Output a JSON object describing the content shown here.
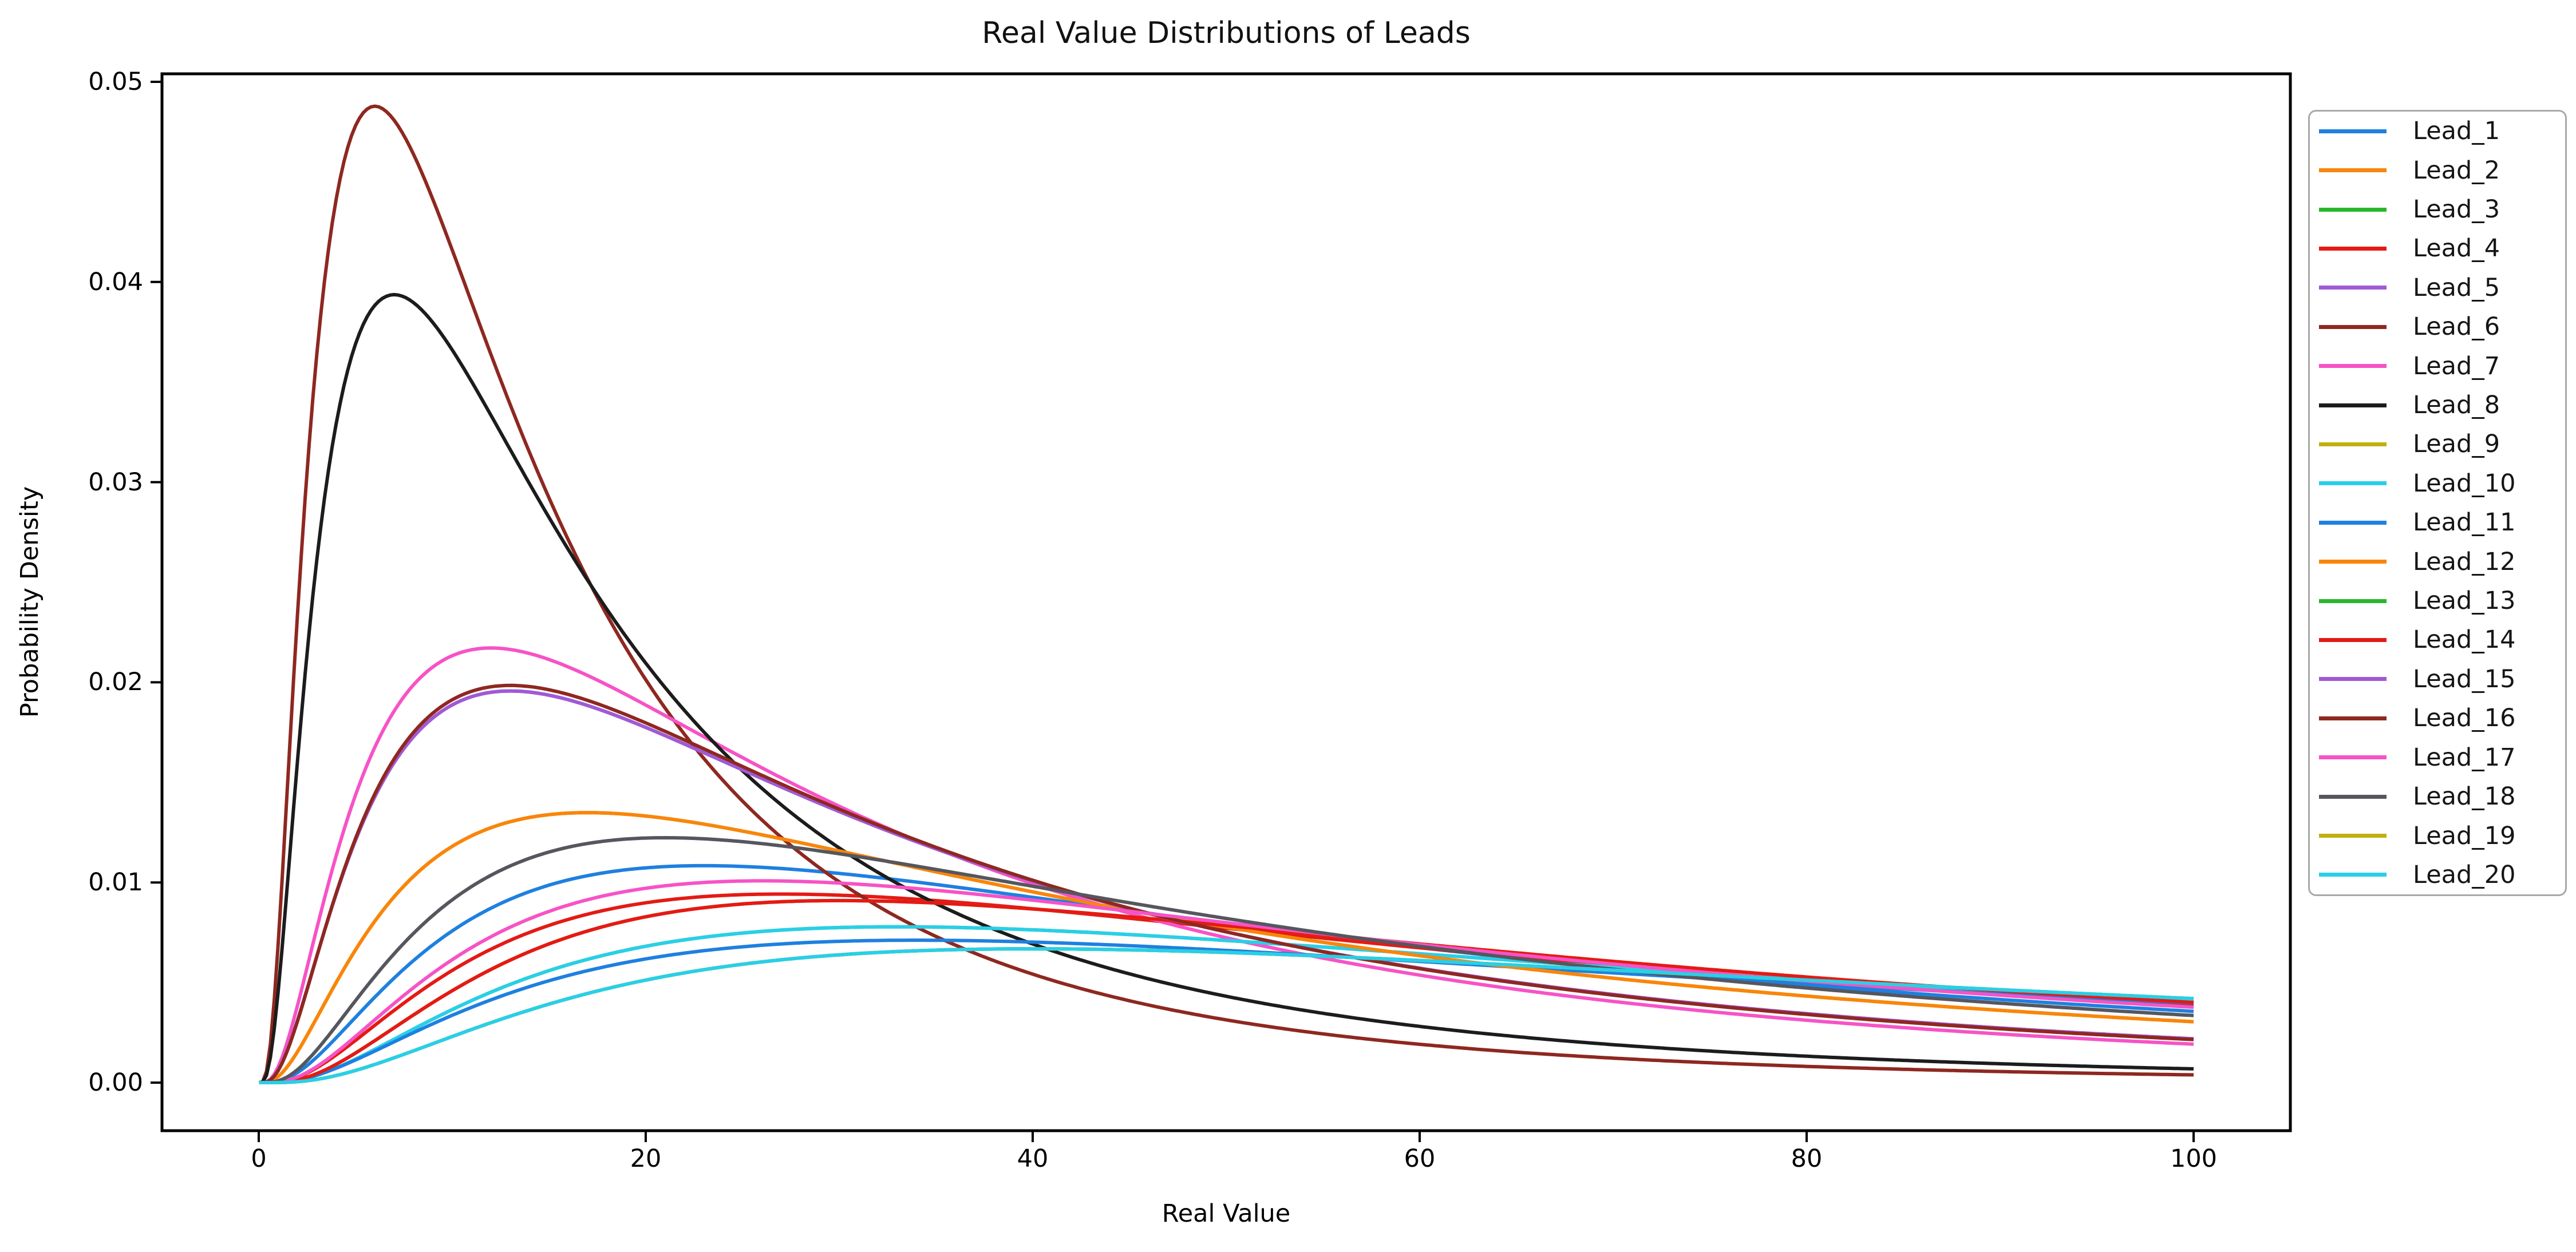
{
  "chart_data": {
    "type": "line",
    "title": "Real Value Distributions of Leads",
    "xlabel": "Real Value",
    "ylabel": "Probability Density",
    "xlim": [
      -5,
      105
    ],
    "ylim": [
      -0.0024,
      0.0504
    ],
    "x_ticks": [
      0,
      20,
      40,
      60,
      80,
      100
    ],
    "x_tick_labels": [
      "0",
      "20",
      "40",
      "60",
      "80",
      "100"
    ],
    "y_ticks": [
      0.0,
      0.01,
      0.02,
      0.03,
      0.04,
      0.05
    ],
    "y_tick_labels": [
      "0.00",
      "0.01",
      "0.02",
      "0.03",
      "0.04",
      "0.05"
    ],
    "grid": false,
    "legend_position": "outside-right",
    "curve_model": "lognormal_pdf",
    "series": [
      {
        "label": "Lead_1",
        "color": "#1e80e0",
        "mu": 4.1058,
        "sigma": 0.985,
        "peak_x": 23,
        "peak_y": 0.0108,
        "value_at_100": 0.00356
      },
      {
        "label": "Lead_2",
        "color": "#f8860b",
        "mu": 3.8877,
        "sigma": 1.027,
        "peak_x": 17,
        "peak_y": 0.0135,
        "value_at_100": 0.00304
      },
      {
        "label": "Lead_3",
        "color": "#2ab62a",
        "mu": 4.4374,
        "sigma": 0.97,
        "peak_x": 33,
        "peak_y": 0.0078,
        "value_at_100": 0.00405
      },
      {
        "label": "Lead_4",
        "color": "#e41a15",
        "mu": 4.2465,
        "sigma": 0.975,
        "peak_x": 27,
        "peak_y": 0.0094,
        "value_at_100": 0.00382
      },
      {
        "label": "Lead_5",
        "color": "#a05ad5",
        "mu": 3.5156,
        "sigma": 0.975,
        "peak_x": 13,
        "peak_y": 0.0196,
        "value_at_100": 0.00219
      },
      {
        "label": "Lead_6",
        "color": "#8e2820",
        "mu": 2.6108,
        "sigma": 0.905,
        "peak_x": 6,
        "peak_y": 0.0488,
        "value_at_100": 0.00039
      },
      {
        "label": "Lead_7",
        "color": "#f653c6",
        "mu": 3.4122,
        "sigma": 0.963,
        "peak_x": 12,
        "peak_y": 0.0217,
        "value_at_100": 0.00192
      },
      {
        "label": "Lead_8",
        "color": "#1c1c1c",
        "mu": 2.8202,
        "sigma": 0.935,
        "peak_x": 7,
        "peak_y": 0.0394,
        "value_at_100": 0.00069
      },
      {
        "label": "Lead_9",
        "color": "#c0b112",
        "mu": 4.2848,
        "sigma": 0.94,
        "peak_x": 30,
        "peak_y": 0.0091,
        "value_at_100": 0.004
      },
      {
        "label": "Lead_10",
        "color": "#29cfe8",
        "mu": 4.4374,
        "sigma": 0.97,
        "peak_x": 33,
        "peak_y": 0.0078,
        "value_at_100": 0.00405
      },
      {
        "label": "Lead_11",
        "color": "#1e80e0",
        "mu": 4.5265,
        "sigma": 1.0,
        "peak_x": 34,
        "peak_y": 0.0071,
        "value_at_100": 0.00398
      },
      {
        "label": "Lead_12",
        "color": "#f8860b",
        "mu": 3.8877,
        "sigma": 1.027,
        "peak_x": 17,
        "peak_y": 0.0135,
        "value_at_100": 0.00304
      },
      {
        "label": "Lead_13",
        "color": "#2ab62a",
        "mu": 4.5914,
        "sigma": 0.95,
        "peak_x": 40,
        "peak_y": 0.0067,
        "value_at_100": 0.0042
      },
      {
        "label": "Lead_14",
        "color": "#e41a15",
        "mu": 4.2848,
        "sigma": 0.94,
        "peak_x": 30,
        "peak_y": 0.0091,
        "value_at_100": 0.004
      },
      {
        "label": "Lead_15",
        "color": "#a05ad5",
        "mu": 3.5156,
        "sigma": 0.975,
        "peak_x": 13,
        "peak_y": 0.0196,
        "value_at_100": 0.00219
      },
      {
        "label": "Lead_16",
        "color": "#8e2820",
        "mu": 3.5019,
        "sigma": 0.968,
        "peak_x": 13,
        "peak_y": 0.0198,
        "value_at_100": 0.00215
      },
      {
        "label": "Lead_17",
        "color": "#f653c6",
        "mu": 4.1797,
        "sigma": 0.96,
        "peak_x": 26,
        "peak_y": 0.0101,
        "value_at_100": 0.00377
      },
      {
        "label": "Lead_18",
        "color": "#56565e",
        "mu": 3.9854,
        "sigma": 0.97,
        "peak_x": 21,
        "peak_y": 0.0122,
        "value_at_100": 0.00335
      },
      {
        "label": "Lead_19",
        "color": "#c0b112",
        "mu": 4.5914,
        "sigma": 0.95,
        "peak_x": 40,
        "peak_y": 0.0067,
        "value_at_100": 0.0042
      },
      {
        "label": "Lead_20",
        "color": "#29cfe8",
        "mu": 4.5914,
        "sigma": 0.95,
        "peak_x": 40,
        "peak_y": 0.0067,
        "value_at_100": 0.0042
      }
    ]
  }
}
